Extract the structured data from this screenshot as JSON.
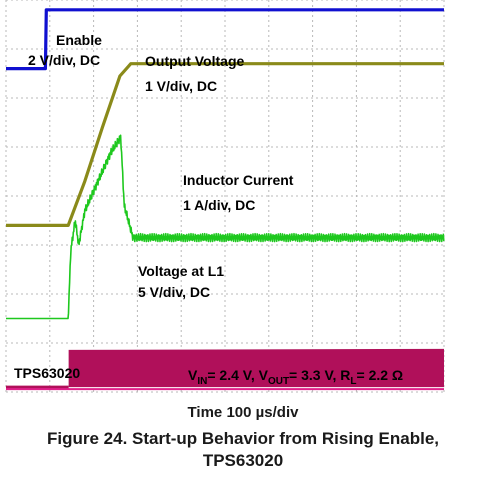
{
  "chart_data": {
    "type": "line",
    "title": "",
    "x_unit": "µs",
    "x_range": [
      0,
      1000
    ],
    "grid": true,
    "colors": {
      "enable": "#1010d0",
      "output_voltage": "#8a8a1a",
      "inductor_current": "#1ec81e",
      "voltage_l1": "#b0105a",
      "grid": "#b8b8b8",
      "marker_pink": "#e0208a"
    },
    "series": [
      {
        "key": "enable",
        "label": "Enable",
        "scale": "2 V/div, DC",
        "baseline_div": 6.6,
        "divs_per_unit": 0.5,
        "points": [
          [
            0,
            0
          ],
          [
            90,
            0
          ],
          [
            92,
            2.4
          ],
          [
            1000,
            2.4
          ]
        ]
      },
      {
        "key": "output_voltage",
        "label": "Output Voltage",
        "scale": "1 V/div, DC",
        "baseline_div": 3.4,
        "divs_per_unit": 1.0,
        "points": [
          [
            0,
            0
          ],
          [
            142,
            0
          ],
          [
            180,
            0.9
          ],
          [
            220,
            2.0
          ],
          [
            260,
            3.05
          ],
          [
            285,
            3.3
          ],
          [
            1000,
            3.3
          ]
        ]
      },
      {
        "key": "inductor_current",
        "label": "Inductor Current",
        "scale": "1 A/div, DC",
        "baseline_div": 1.5,
        "divs_per_unit": 1.0,
        "noise": 0.08,
        "points": [
          [
            0,
            0
          ],
          [
            142,
            0
          ],
          [
            148,
            1.4
          ],
          [
            158,
            2.0
          ],
          [
            166,
            1.5
          ],
          [
            180,
            2.2
          ],
          [
            210,
            2.8
          ],
          [
            240,
            3.4
          ],
          [
            262,
            3.7
          ],
          [
            270,
            2.3
          ],
          [
            290,
            1.65
          ],
          [
            1000,
            1.65
          ]
        ]
      },
      {
        "key": "voltage_l1",
        "label": "Voltage at L1",
        "scale": "5 V/div, DC",
        "baseline_div": 0.1,
        "divs_per_unit": 0.2,
        "switching": true,
        "points": [
          [
            0,
            0
          ],
          [
            143,
            0
          ],
          [
            143,
            3.8
          ],
          [
            1000,
            3.9
          ]
        ]
      }
    ],
    "annotations": {
      "device": "TPS63020",
      "conditions": "= 2.4 V, V",
      "vin_sub": "IN",
      "vout_sub": "OUT",
      "rl_sub": "L",
      "vin_prefix": "V",
      "vout_mid": "= 3.3 V, R",
      "rl_value": "= 2.2 Ω"
    },
    "time_label": "Time 100 µs/div",
    "figure_title_line1": "Figure 24. Start-up Behavior from Rising Enable,",
    "figure_title_line2": "TPS63020"
  }
}
